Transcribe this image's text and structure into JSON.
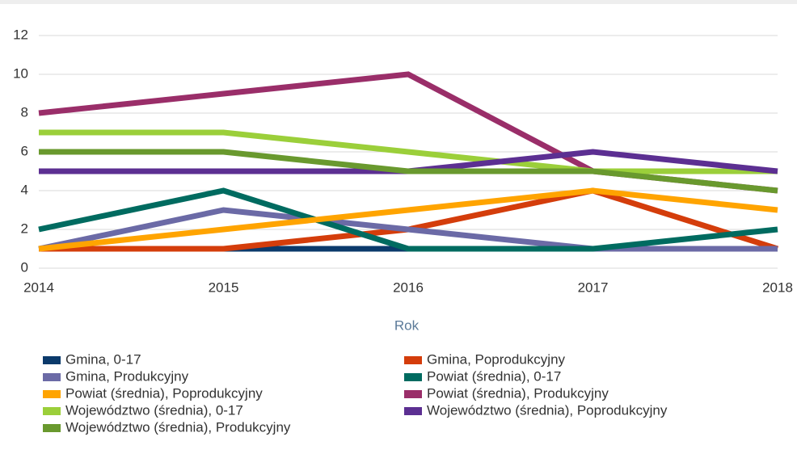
{
  "chart_data": {
    "type": "line",
    "x": [
      2014,
      2015,
      2016,
      2017,
      2018
    ],
    "xlim": [
      2014,
      2018
    ],
    "xticks": [
      2014,
      2015,
      2016,
      2017,
      2018
    ],
    "ylim": [
      0,
      12
    ],
    "yticks": [
      0,
      2,
      4,
      6,
      8,
      10,
      12
    ],
    "x_label": "Rok",
    "grid": true,
    "series": [
      {
        "name": "Gmina, 0-17",
        "color": "#0b3a6b",
        "values": [
          1,
          1,
          1,
          1,
          1
        ]
      },
      {
        "name": "Gmina, Poprodukcyjny",
        "color": "#d43d0b",
        "values": [
          1,
          1,
          2,
          4,
          1
        ]
      },
      {
        "name": "Gmina, Produkcyjny",
        "color": "#6b6aa6",
        "values": [
          1,
          3,
          2,
          1,
          1
        ]
      },
      {
        "name": "Powiat (średnia), 0-17",
        "color": "#006b60",
        "values": [
          2,
          4,
          1,
          1,
          2
        ]
      },
      {
        "name": "Powiat (średnia), Poprodukcyjny",
        "color": "#ffa400",
        "values": [
          1,
          2,
          3,
          4,
          3
        ]
      },
      {
        "name": "Powiat (średnia), Produkcyjny",
        "color": "#9a2e69",
        "values": [
          8,
          9,
          10,
          5,
          4
        ]
      },
      {
        "name": "Województwo (średnia), 0-17",
        "color": "#9bcf3a",
        "values": [
          7,
          7,
          6,
          5,
          5
        ]
      },
      {
        "name": "Województwo (średnia), Poprodukcyjny",
        "color": "#5c2f92",
        "values": [
          5,
          5,
          5,
          6,
          5
        ]
      },
      {
        "name": "Województwo (średnia), Produkcyjny",
        "color": "#69992e",
        "values": [
          6,
          6,
          5,
          5,
          4
        ]
      }
    ]
  }
}
